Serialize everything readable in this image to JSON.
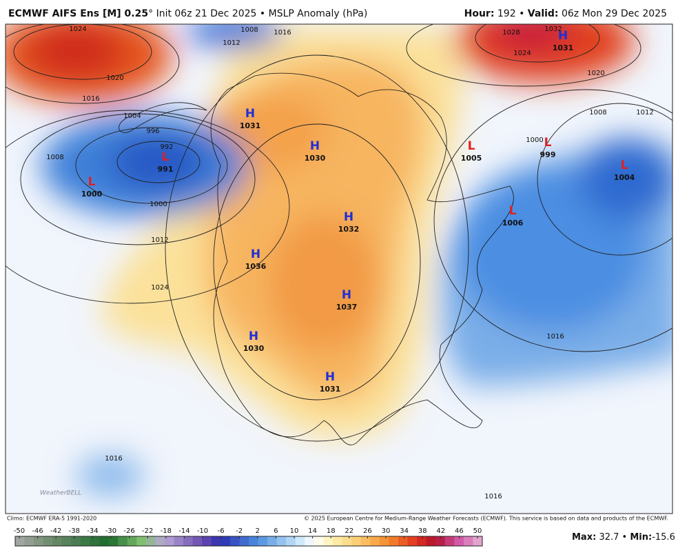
{
  "header": {
    "title": "ECMWF AIFS Ens [M] 0.25",
    "degree": "°",
    "init": "Init 06z 21 Dec 2025",
    "bullet": "•",
    "field": "MSLP Anomaly (hPa)",
    "hour_label": "Hour:",
    "hour": "192",
    "valid_label": "Valid:",
    "valid": "06z Mon 29 Dec 2025"
  },
  "pressure_centers": [
    {
      "letter": "H",
      "value": "1031"
    },
    {
      "letter": "H",
      "value": "1030"
    },
    {
      "letter": "H",
      "value": "1032"
    },
    {
      "letter": "H",
      "value": "1036"
    },
    {
      "letter": "H",
      "value": "1037"
    },
    {
      "letter": "H",
      "value": "1030"
    },
    {
      "letter": "H",
      "value": "1031"
    },
    {
      "letter": "H",
      "value": "1031"
    },
    {
      "letter": "L",
      "value": "991"
    },
    {
      "letter": "L",
      "value": "1000"
    },
    {
      "letter": "L",
      "value": "1005"
    },
    {
      "letter": "L",
      "value": "999"
    },
    {
      "letter": "L",
      "value": "1004"
    },
    {
      "letter": "L",
      "value": "1006"
    }
  ],
  "isobar_labels": [
    "1024",
    "1020",
    "1016",
    "1004",
    "996",
    "992",
    "1008",
    "1000",
    "1012",
    "1024",
    "1008",
    "1012",
    "1016",
    "1028",
    "1032",
    "1024",
    "1020",
    "1008",
    "1012",
    "1000",
    "1016",
    "1016",
    "1016"
  ],
  "footer": {
    "climo": "Climo: ECMWF ERA-5 1991-2020",
    "copyright": "© 2025 European Centre for Medium-Range Weather Forecasts (ECMWF). This service is based on data and products of the ECMWF.",
    "max_label": "Max:",
    "max": "32.7",
    "min_label": "Min:",
    "min": "-15.6",
    "logo": "WeatherBELL"
  },
  "colorbar": {
    "ticks": [
      -50,
      -46,
      -42,
      -38,
      -34,
      -30,
      -26,
      -22,
      -18,
      -14,
      -10,
      -6,
      -2,
      2,
      6,
      10,
      14,
      18,
      22,
      26,
      30,
      34,
      38,
      42,
      46,
      50
    ]
  }
}
